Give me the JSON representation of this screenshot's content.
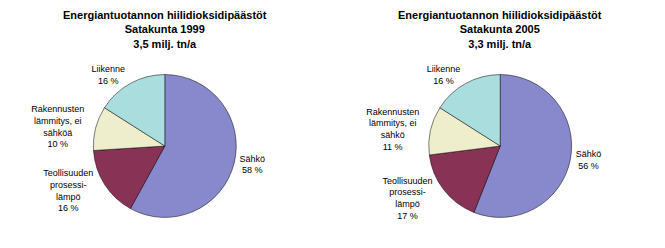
{
  "chart_data": [
    {
      "type": "pie",
      "title": "Energiantuotannon hiilidioksidipäästöt\nSatakunta 1999\n3,5 milj. tn/a",
      "categories": [
        "Sähkö",
        "Teollisuuden\nprosessi-\nlämpö",
        "Rakennusten\nlämmitys, ei\nsähköä",
        "Liikenne"
      ],
      "values": [
        58,
        16,
        10,
        16
      ],
      "value_labels": [
        "58 %",
        "16 %",
        "10 %",
        "16 %"
      ],
      "colors": [
        "#8888CC",
        "#883355",
        "#EEEECC",
        "#AADDDD"
      ],
      "data_labels": true
    },
    {
      "type": "pie",
      "title": "Energiantuotannon hiilidioksidipäästöt\nSatakunta 2005\n3,3 milj. tn/a",
      "categories": [
        "Sähkö",
        "Teollisuuden\nprosessi-\nlämpö",
        "Rakennusten\nlämmitys, ei\nsähkö",
        "Liikenne"
      ],
      "values": [
        56,
        17,
        11,
        16
      ],
      "value_labels": [
        "56 %",
        "17 %",
        "11 %",
        "16 %"
      ],
      "colors": [
        "#8888CC",
        "#883355",
        "#EEEECC",
        "#AADDDD"
      ],
      "data_labels": true
    }
  ]
}
